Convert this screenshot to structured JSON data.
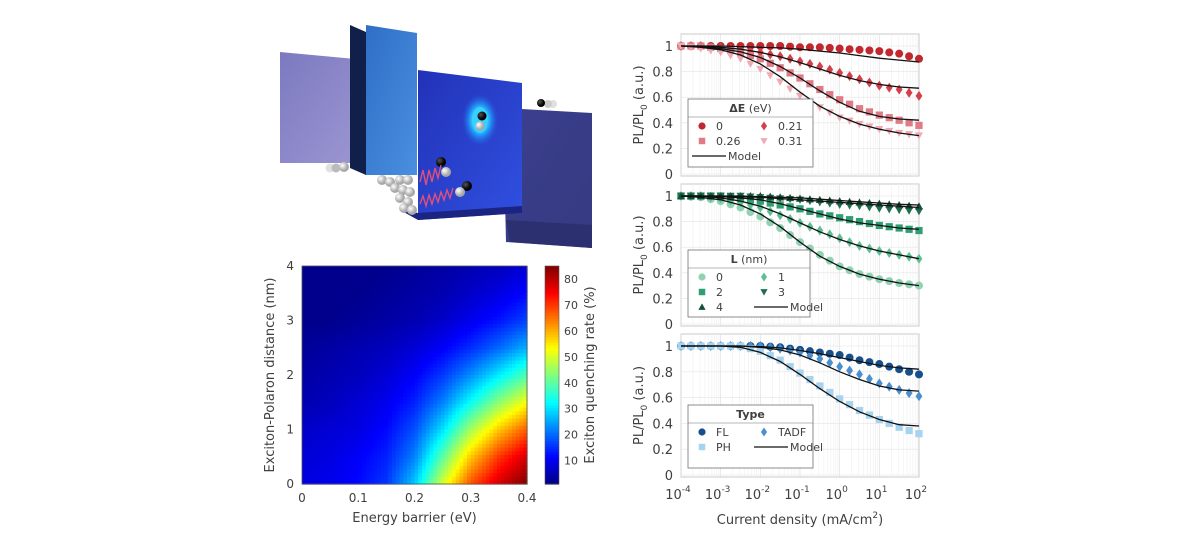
{
  "illustration": {
    "description": "3D schematic of OLED layer stack with excitons and polarons",
    "colors": {
      "left_slab": "#8a86c8",
      "tall_block": "#3d7fd6",
      "central_block": "#2a3ccf",
      "right_block": "#3a3f8e",
      "exciton_glow": "#2fb8ff",
      "spring": "#e0507a"
    }
  },
  "chart_data": [
    {
      "id": "heatmap",
      "type": "heatmap",
      "title": "",
      "xlabel": "Energy barrier (eV)",
      "ylabel": "Exciton-Polaron distance (nm)",
      "xlim": [
        0,
        0.4
      ],
      "ylim": [
        0,
        4
      ],
      "xticks": [
        "0",
        "0.1",
        "0.2",
        "0.3",
        "0.4"
      ],
      "yticks": [
        "0",
        "1",
        "2",
        "3",
        "4"
      ],
      "colorbar": {
        "label": "Exciton quenching rate (%)",
        "range": [
          1,
          85
        ],
        "ticks": [
          "10",
          "20",
          "30",
          "40",
          "50",
          "60",
          "70",
          "80"
        ],
        "colormap": "jet"
      },
      "x": [
        0,
        0.05,
        0.1,
        0.15,
        0.2,
        0.25,
        0.3,
        0.35,
        0.4
      ],
      "y": [
        0,
        0.5,
        1,
        1.5,
        2,
        2.5,
        3,
        3.5,
        4
      ],
      "values": [
        [
          9,
          10,
          12,
          16,
          28,
          50,
          68,
          78,
          85
        ],
        [
          8,
          9,
          11,
          14,
          22,
          40,
          58,
          70,
          78
        ],
        [
          7,
          8,
          9,
          12,
          18,
          30,
          46,
          58,
          67
        ],
        [
          5,
          6,
          8,
          10,
          14,
          22,
          33,
          44,
          53
        ],
        [
          4,
          5,
          6,
          8,
          11,
          16,
          23,
          31,
          39
        ],
        [
          3,
          4,
          5,
          6,
          8,
          11,
          15,
          20,
          26
        ],
        [
          2,
          2,
          3,
          4,
          5,
          7,
          10,
          13,
          17
        ],
        [
          2,
          2,
          2,
          3,
          4,
          5,
          7,
          9,
          12
        ],
        [
          2,
          2,
          2,
          2,
          3,
          4,
          5,
          6,
          8
        ]
      ]
    },
    {
      "id": "panel-deltaE",
      "type": "scatter",
      "xlabel": "",
      "ylabel": "PL/PL0 (a.u.)",
      "xscale": "log",
      "xlim": [
        0.0001,
        100
      ],
      "ylim": [
        0,
        1.08
      ],
      "yticks": [
        "0",
        "0.2",
        "0.4",
        "0.6",
        "0.8",
        "1"
      ],
      "grid": true,
      "legend": {
        "title": "ΔE (eV)",
        "placement": "bottom-left",
        "model_label": "Model"
      },
      "x_log10": [
        -4,
        -3.5,
        -3,
        -2.5,
        -2,
        -1.5,
        -1,
        -0.5,
        0,
        0.5,
        1,
        1.5,
        2
      ],
      "series": [
        {
          "name": "0",
          "marker": "circle",
          "color": "#c1272d",
          "values": [
            1.0,
            1.0,
            1.0,
            1.0,
            1.0,
            1.0,
            0.99,
            0.99,
            0.98,
            0.97,
            0.96,
            0.94,
            0.9
          ],
          "model": [
            1.0,
            1.0,
            1.0,
            0.995,
            0.99,
            0.985,
            0.975,
            0.96,
            0.945,
            0.925,
            0.905,
            0.89,
            0.875
          ]
        },
        {
          "name": "0.21",
          "marker": "diamond",
          "color": "#d2414a",
          "values": [
            1.0,
            1.0,
            0.99,
            0.97,
            0.95,
            0.92,
            0.88,
            0.84,
            0.79,
            0.74,
            0.69,
            0.66,
            0.61
          ],
          "model": [
            1.0,
            1.0,
            0.99,
            0.975,
            0.95,
            0.915,
            0.87,
            0.82,
            0.77,
            0.73,
            0.7,
            0.68,
            0.67
          ]
        },
        {
          "name": "0.26",
          "marker": "square",
          "color": "#e07b86",
          "values": [
            1.0,
            1.0,
            0.98,
            0.95,
            0.9,
            0.83,
            0.75,
            0.66,
            0.58,
            0.51,
            0.46,
            0.42,
            0.38
          ],
          "model": [
            1.0,
            0.995,
            0.98,
            0.955,
            0.91,
            0.84,
            0.75,
            0.65,
            0.56,
            0.49,
            0.45,
            0.43,
            0.42
          ]
        },
        {
          "name": "0.31",
          "marker": "triangle-down",
          "color": "#f0aab4",
          "values": [
            1.0,
            0.98,
            0.95,
            0.9,
            0.82,
            0.72,
            0.61,
            0.52,
            0.44,
            0.39,
            0.35,
            0.32,
            0.3
          ],
          "model": [
            1.0,
            0.99,
            0.97,
            0.93,
            0.86,
            0.76,
            0.64,
            0.53,
            0.45,
            0.39,
            0.35,
            0.32,
            0.3
          ]
        }
      ]
    },
    {
      "id": "panel-L",
      "type": "scatter",
      "xlabel": "",
      "ylabel": "PL/PL0 (a.u.)",
      "xscale": "log",
      "xlim": [
        0.0001,
        100
      ],
      "ylim": [
        0,
        1.08
      ],
      "yticks": [
        "0",
        "0.2",
        "0.4",
        "0.6",
        "0.8",
        "1"
      ],
      "grid": true,
      "legend": {
        "title": "L (nm)",
        "placement": "bottom-left",
        "model_label": "Model"
      },
      "x_log10": [
        -4,
        -3.5,
        -3,
        -2.5,
        -2,
        -1.5,
        -1,
        -0.5,
        0,
        0.5,
        1,
        1.5,
        2
      ],
      "series": [
        {
          "name": "0",
          "marker": "circle",
          "color": "#8fd3b3",
          "values": [
            1.0,
            0.99,
            0.96,
            0.91,
            0.84,
            0.75,
            0.64,
            0.54,
            0.45,
            0.39,
            0.35,
            0.32,
            0.3
          ],
          "model": [
            1.0,
            0.99,
            0.97,
            0.93,
            0.86,
            0.76,
            0.64,
            0.53,
            0.45,
            0.39,
            0.35,
            0.32,
            0.3
          ]
        },
        {
          "name": "1",
          "marker": "diamond",
          "color": "#5ebf95",
          "values": [
            1.0,
            1.0,
            0.98,
            0.95,
            0.91,
            0.85,
            0.79,
            0.73,
            0.67,
            0.61,
            0.57,
            0.54,
            0.51
          ],
          "model": [
            1.0,
            1.0,
            0.985,
            0.96,
            0.92,
            0.86,
            0.79,
            0.72,
            0.66,
            0.61,
            0.57,
            0.54,
            0.51
          ]
        },
        {
          "name": "2",
          "marker": "square",
          "color": "#2e9e73",
          "values": [
            1.0,
            1.0,
            1.0,
            0.98,
            0.96,
            0.93,
            0.9,
            0.86,
            0.83,
            0.8,
            0.77,
            0.75,
            0.73
          ],
          "model": [
            1.0,
            1.0,
            0.995,
            0.985,
            0.97,
            0.94,
            0.9,
            0.86,
            0.82,
            0.79,
            0.77,
            0.75,
            0.74
          ]
        },
        {
          "name": "3",
          "marker": "triangle-down",
          "color": "#1f6e4e",
          "values": [
            1.0,
            1.0,
            1.0,
            1.0,
            0.99,
            0.98,
            0.97,
            0.95,
            0.93,
            0.92,
            0.9,
            0.89,
            0.88
          ],
          "model": [
            1.0,
            1.0,
            1.0,
            0.995,
            0.99,
            0.98,
            0.97,
            0.96,
            0.95,
            0.94,
            0.93,
            0.92,
            0.91
          ]
        },
        {
          "name": "4",
          "marker": "triangle-up",
          "color": "#145038",
          "values": [
            1.0,
            1.0,
            1.0,
            1.0,
            1.0,
            0.99,
            0.98,
            0.97,
            0.96,
            0.95,
            0.94,
            0.93,
            0.92
          ],
          "model": [
            1.0,
            1.0,
            1.0,
            1.0,
            0.995,
            0.99,
            0.985,
            0.975,
            0.965,
            0.955,
            0.945,
            0.935,
            0.93
          ]
        }
      ]
    },
    {
      "id": "panel-type",
      "type": "scatter",
      "xlabel": "Current density (mA/cm2)",
      "ylabel": "PL/PL0 (a.u.)",
      "xscale": "log",
      "xlim": [
        0.0001,
        100
      ],
      "ylim": [
        0,
        1.08
      ],
      "xticks": [
        "-4",
        "-3",
        "-2",
        "-1",
        "0",
        "1",
        "2"
      ],
      "yticks": [
        "0",
        "0.2",
        "0.4",
        "0.6",
        "0.8",
        "1"
      ],
      "grid": true,
      "legend": {
        "title": "Type",
        "placement": "bottom-left",
        "model_label": "Model"
      },
      "x_log10": [
        -4,
        -3.5,
        -3,
        -2.5,
        -2,
        -1.5,
        -1,
        -0.5,
        0,
        0.5,
        1,
        1.5,
        2
      ],
      "series": [
        {
          "name": "FL",
          "marker": "circle",
          "color": "#164f8c",
          "values": [
            1.0,
            1.0,
            1.0,
            1.0,
            1.0,
            0.99,
            0.97,
            0.95,
            0.93,
            0.89,
            0.86,
            0.82,
            0.78
          ],
          "model": [
            1.0,
            1.0,
            1.0,
            1.0,
            0.995,
            0.985,
            0.965,
            0.94,
            0.91,
            0.88,
            0.85,
            0.83,
            0.82
          ]
        },
        {
          "name": "TADF",
          "marker": "diamond",
          "color": "#4a8fd0",
          "values": [
            1.0,
            1.0,
            1.0,
            1.0,
            1.0,
            0.98,
            0.95,
            0.9,
            0.84,
            0.78,
            0.71,
            0.66,
            0.61
          ],
          "model": [
            1.0,
            1.0,
            1.0,
            1.0,
            0.99,
            0.97,
            0.93,
            0.87,
            0.8,
            0.74,
            0.69,
            0.66,
            0.65
          ]
        },
        {
          "name": "PH",
          "marker": "square",
          "color": "#a6d3ef",
          "values": [
            1.0,
            1.0,
            1.0,
            1.0,
            0.96,
            0.89,
            0.79,
            0.69,
            0.59,
            0.5,
            0.43,
            0.37,
            0.32
          ],
          "model": [
            1.0,
            1.0,
            1.0,
            0.99,
            0.95,
            0.88,
            0.78,
            0.67,
            0.57,
            0.49,
            0.43,
            0.39,
            0.38
          ]
        }
      ]
    }
  ]
}
